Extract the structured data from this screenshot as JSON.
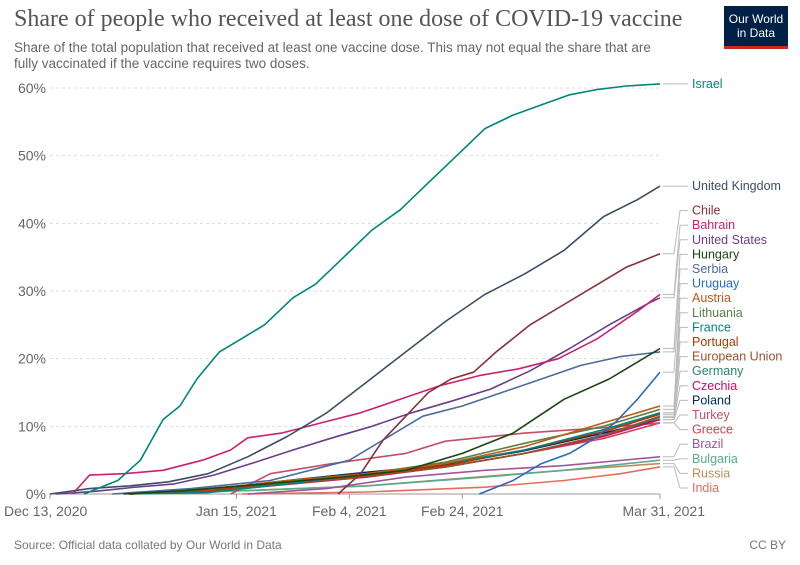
{
  "header": {
    "title": "Share of people who received at least one dose of COVID-19 vaccine",
    "subtitle": "Share of the total population that received at least one vaccine dose. This may not equal the share that are fully vaccinated if the vaccine requires two doses.",
    "logo_line1": "Our World",
    "logo_line2": "in Data"
  },
  "footer": {
    "source": "Source: Official data collated by Our World in Data",
    "license": "CC BY"
  },
  "chart_data": {
    "type": "line",
    "x_axis": {
      "type": "date",
      "range": [
        "2020-12-13",
        "2021-03-31"
      ],
      "ticks": [
        {
          "date": "2020-12-13",
          "label": "Dec 13, 2020"
        },
        {
          "date": "2021-01-15",
          "label": "Jan 15, 2021"
        },
        {
          "date": "2021-02-04",
          "label": "Feb 4, 2021"
        },
        {
          "date": "2021-02-24",
          "label": "Feb 24, 2021"
        },
        {
          "date": "2021-03-31",
          "label": "Mar 31, 2021"
        }
      ]
    },
    "y_axis": {
      "range": [
        0,
        60
      ],
      "ticks": [
        0,
        10,
        20,
        30,
        40,
        50,
        60
      ],
      "tick_labels": [
        "0%",
        "10%",
        "20%",
        "30%",
        "40%",
        "50%",
        "60%"
      ]
    },
    "grid": "horizontal-dashed",
    "legend": "right, labels at line ends",
    "series": [
      {
        "name": "Israel",
        "color": "#00847e",
        "points": [
          [
            "2020-12-19",
            0
          ],
          [
            "2020-12-25",
            2
          ],
          [
            "2020-12-29",
            5
          ],
          [
            "2021-01-02",
            11
          ],
          [
            "2021-01-05",
            13
          ],
          [
            "2021-01-08",
            17
          ],
          [
            "2021-01-12",
            21
          ],
          [
            "2021-01-16",
            23
          ],
          [
            "2021-01-20",
            25
          ],
          [
            "2021-01-25",
            29
          ],
          [
            "2021-01-29",
            31
          ],
          [
            "2021-02-03",
            35
          ],
          [
            "2021-02-08",
            39
          ],
          [
            "2021-02-13",
            42
          ],
          [
            "2021-02-18",
            46
          ],
          [
            "2021-02-23",
            50
          ],
          [
            "2021-02-28",
            54
          ],
          [
            "2021-03-05",
            56
          ],
          [
            "2021-03-10",
            57.5
          ],
          [
            "2021-03-15",
            59
          ],
          [
            "2021-03-20",
            59.8
          ],
          [
            "2021-03-25",
            60.3
          ],
          [
            "2021-03-31",
            60.6
          ]
        ]
      },
      {
        "name": "United Kingdom",
        "color": "#3c4e66",
        "points": [
          [
            "2020-12-13",
            0
          ],
          [
            "2020-12-20",
            0.8
          ],
          [
            "2020-12-27",
            1.2
          ],
          [
            "2021-01-03",
            1.8
          ],
          [
            "2021-01-10",
            3
          ],
          [
            "2021-01-17",
            5.5
          ],
          [
            "2021-01-24",
            8.5
          ],
          [
            "2021-01-31",
            12
          ],
          [
            "2021-02-07",
            16.5
          ],
          [
            "2021-02-14",
            21
          ],
          [
            "2021-02-21",
            25.5
          ],
          [
            "2021-02-28",
            29.5
          ],
          [
            "2021-03-07",
            32.5
          ],
          [
            "2021-03-14",
            36
          ],
          [
            "2021-03-21",
            41
          ],
          [
            "2021-03-27",
            43.5
          ],
          [
            "2021-03-31",
            45.5
          ]
        ]
      },
      {
        "name": "Chile",
        "color": "#883039",
        "points": [
          [
            "2021-02-02",
            0
          ],
          [
            "2021-02-06",
            3
          ],
          [
            "2021-02-10",
            8
          ],
          [
            "2021-02-14",
            11.5
          ],
          [
            "2021-02-18",
            15
          ],
          [
            "2021-02-22",
            17
          ],
          [
            "2021-02-26",
            18
          ],
          [
            "2021-03-02",
            21
          ],
          [
            "2021-03-08",
            25
          ],
          [
            "2021-03-14",
            28
          ],
          [
            "2021-03-20",
            31
          ],
          [
            "2021-03-25",
            33.5
          ],
          [
            "2021-03-31",
            35.5
          ]
        ]
      },
      {
        "name": "Bahrain",
        "color": "#c7226f",
        "points": [
          [
            "2020-12-17",
            0
          ],
          [
            "2020-12-20",
            2.8
          ],
          [
            "2020-12-26",
            3
          ],
          [
            "2021-01-02",
            3.5
          ],
          [
            "2021-01-09",
            5
          ],
          [
            "2021-01-14",
            6.5
          ],
          [
            "2021-01-17",
            8.3
          ],
          [
            "2021-01-23",
            9
          ],
          [
            "2021-01-30",
            10.5
          ],
          [
            "2021-02-06",
            12
          ],
          [
            "2021-02-13",
            14
          ],
          [
            "2021-02-20",
            16
          ],
          [
            "2021-02-27",
            17.5
          ],
          [
            "2021-03-06",
            18.5
          ],
          [
            "2021-03-13",
            20
          ],
          [
            "2021-03-20",
            23
          ],
          [
            "2021-03-27",
            27
          ],
          [
            "2021-03-31",
            29.5
          ]
        ]
      },
      {
        "name": "United States",
        "color": "#6b3d8d",
        "points": [
          [
            "2020-12-14",
            0
          ],
          [
            "2020-12-21",
            0.4
          ],
          [
            "2020-12-28",
            1
          ],
          [
            "2021-01-04",
            1.5
          ],
          [
            "2021-01-11",
            2.8
          ],
          [
            "2021-01-18",
            4.6
          ],
          [
            "2021-01-25",
            6.5
          ],
          [
            "2021-02-01",
            8.3
          ],
          [
            "2021-02-08",
            10
          ],
          [
            "2021-02-15",
            12
          ],
          [
            "2021-02-22",
            13.7
          ],
          [
            "2021-03-01",
            15.5
          ],
          [
            "2021-03-08",
            18.2
          ],
          [
            "2021-03-15",
            21.5
          ],
          [
            "2021-03-22",
            25
          ],
          [
            "2021-03-29",
            28.2
          ],
          [
            "2021-03-31",
            29
          ]
        ]
      },
      {
        "name": "Hungary",
        "color": "#18470f",
        "points": [
          [
            "2020-12-26",
            0
          ],
          [
            "2021-01-06",
            0.5
          ],
          [
            "2021-01-20",
            1.5
          ],
          [
            "2021-02-03",
            2.5
          ],
          [
            "2021-02-14",
            3.5
          ],
          [
            "2021-02-24",
            6
          ],
          [
            "2021-03-05",
            9
          ],
          [
            "2021-03-14",
            14
          ],
          [
            "2021-03-22",
            17
          ],
          [
            "2021-03-31",
            21.5
          ]
        ]
      },
      {
        "name": "Serbia",
        "color": "#4c6a9c",
        "points": [
          [
            "2020-12-24",
            0
          ],
          [
            "2021-01-07",
            0.8
          ],
          [
            "2021-01-21",
            2
          ],
          [
            "2021-02-04",
            5
          ],
          [
            "2021-02-10",
            8
          ],
          [
            "2021-02-17",
            11.5
          ],
          [
            "2021-02-24",
            13
          ],
          [
            "2021-03-03",
            15
          ],
          [
            "2021-03-10",
            17
          ],
          [
            "2021-03-17",
            19
          ],
          [
            "2021-03-24",
            20.3
          ],
          [
            "2021-03-31",
            21
          ]
        ]
      },
      {
        "name": "Uruguay",
        "color": "#286bbb",
        "points": [
          [
            "2021-02-27",
            0
          ],
          [
            "2021-03-05",
            2
          ],
          [
            "2021-03-10",
            4.5
          ],
          [
            "2021-03-15",
            6
          ],
          [
            "2021-03-19",
            8
          ],
          [
            "2021-03-23",
            10.5
          ],
          [
            "2021-03-27",
            14
          ],
          [
            "2021-03-31",
            18
          ]
        ]
      },
      {
        "name": "Austria",
        "color": "#be5915",
        "points": [
          [
            "2020-12-27",
            0
          ],
          [
            "2021-01-10",
            0.7
          ],
          [
            "2021-01-24",
            2
          ],
          [
            "2021-02-07",
            3
          ],
          [
            "2021-02-21",
            4.5
          ],
          [
            "2021-03-07",
            7
          ],
          [
            "2021-03-21",
            10.5
          ],
          [
            "2021-03-31",
            13
          ]
        ]
      },
      {
        "name": "Lithuania",
        "color": "#578145",
        "points": [
          [
            "2020-12-27",
            0
          ],
          [
            "2021-01-10",
            0.8
          ],
          [
            "2021-01-24",
            1.8
          ],
          [
            "2021-02-07",
            3
          ],
          [
            "2021-02-21",
            4.7
          ],
          [
            "2021-03-07",
            7.5
          ],
          [
            "2021-03-21",
            10
          ],
          [
            "2021-03-31",
            12.5
          ]
        ]
      },
      {
        "name": "France",
        "color": "#00847e",
        "points": [
          [
            "2020-12-27",
            0
          ],
          [
            "2021-01-10",
            0.2
          ],
          [
            "2021-01-24",
            1.5
          ],
          [
            "2021-02-07",
            3
          ],
          [
            "2021-02-21",
            4.5
          ],
          [
            "2021-03-07",
            6.5
          ],
          [
            "2021-03-21",
            9.5
          ],
          [
            "2021-03-31",
            12
          ]
        ]
      },
      {
        "name": "Portugal",
        "color": "#b13507",
        "points": [
          [
            "2020-12-27",
            0
          ],
          [
            "2021-01-10",
            0.5
          ],
          [
            "2021-01-24",
            1.8
          ],
          [
            "2021-02-07",
            2.8
          ],
          [
            "2021-02-21",
            4.2
          ],
          [
            "2021-03-07",
            6.5
          ],
          [
            "2021-03-21",
            9.2
          ],
          [
            "2021-03-31",
            11.8
          ]
        ]
      },
      {
        "name": "European Union",
        "color": "#9a5129",
        "points": [
          [
            "2020-12-27",
            0
          ],
          [
            "2021-01-10",
            0.4
          ],
          [
            "2021-01-24",
            1.5
          ],
          [
            "2021-02-07",
            2.6
          ],
          [
            "2021-02-21",
            4
          ],
          [
            "2021-03-07",
            6
          ],
          [
            "2021-03-21",
            8.7
          ],
          [
            "2021-03-31",
            11.5
          ]
        ]
      },
      {
        "name": "Germany",
        "color": "#2c8465",
        "points": [
          [
            "2020-12-27",
            0
          ],
          [
            "2021-01-10",
            0.6
          ],
          [
            "2021-01-24",
            1.7
          ],
          [
            "2021-02-07",
            2.8
          ],
          [
            "2021-02-21",
            4
          ],
          [
            "2021-03-07",
            6
          ],
          [
            "2021-03-21",
            8.7
          ],
          [
            "2021-03-31",
            11.3
          ]
        ]
      },
      {
        "name": "Czechia",
        "color": "#cf0a66",
        "points": [
          [
            "2020-12-27",
            0
          ],
          [
            "2021-01-10",
            0.5
          ],
          [
            "2021-01-24",
            1.5
          ],
          [
            "2021-02-07",
            2.5
          ],
          [
            "2021-02-21",
            4
          ],
          [
            "2021-03-07",
            6
          ],
          [
            "2021-03-21",
            8.5
          ],
          [
            "2021-03-31",
            11
          ]
        ]
      },
      {
        "name": "Poland",
        "color": "#00295b",
        "points": [
          [
            "2020-12-27",
            0
          ],
          [
            "2021-01-10",
            0.6
          ],
          [
            "2021-01-24",
            2
          ],
          [
            "2021-02-07",
            3.2
          ],
          [
            "2021-02-21",
            4.3
          ],
          [
            "2021-03-07",
            6.4
          ],
          [
            "2021-03-21",
            9
          ],
          [
            "2021-03-31",
            11
          ]
        ]
      },
      {
        "name": "Turkey",
        "color": "#c15065",
        "points": [
          [
            "2021-01-14",
            0
          ],
          [
            "2021-01-21",
            3
          ],
          [
            "2021-02-01",
            4.5
          ],
          [
            "2021-02-14",
            6
          ],
          [
            "2021-02-21",
            7.8
          ],
          [
            "2021-03-07",
            9
          ],
          [
            "2021-03-21",
            9.8
          ],
          [
            "2021-03-31",
            10.5
          ]
        ]
      },
      {
        "name": "Greece",
        "color": "#d73c50",
        "points": [
          [
            "2020-12-27",
            0
          ],
          [
            "2021-01-10",
            0.4
          ],
          [
            "2021-01-24",
            1.4
          ],
          [
            "2021-02-07",
            2.5
          ],
          [
            "2021-02-21",
            4
          ],
          [
            "2021-03-07",
            6
          ],
          [
            "2021-03-21",
            8.2
          ],
          [
            "2021-03-31",
            10.5
          ]
        ]
      },
      {
        "name": "Brazil",
        "color": "#a2559c",
        "points": [
          [
            "2021-01-17",
            0
          ],
          [
            "2021-01-31",
            0.8
          ],
          [
            "2021-02-14",
            2.5
          ],
          [
            "2021-02-28",
            3.5
          ],
          [
            "2021-03-14",
            4.2
          ],
          [
            "2021-03-31",
            5.5
          ]
        ]
      },
      {
        "name": "Bulgaria",
        "color": "#58ac8c",
        "points": [
          [
            "2020-12-27",
            0
          ],
          [
            "2021-01-17",
            0.5
          ],
          [
            "2021-02-07",
            1.2
          ],
          [
            "2021-02-28",
            2.5
          ],
          [
            "2021-03-14",
            3.5
          ],
          [
            "2021-03-31",
            5
          ]
        ]
      },
      {
        "name": "Russia",
        "color": "#bc8e5a",
        "points": [
          [
            "2020-12-27",
            0
          ],
          [
            "2021-01-17",
            0.5
          ],
          [
            "2021-02-07",
            1.2
          ],
          [
            "2021-02-28",
            2.6
          ],
          [
            "2021-03-14",
            3.5
          ],
          [
            "2021-03-31",
            4.5
          ]
        ]
      },
      {
        "name": "India",
        "color": "#e56e5a",
        "points": [
          [
            "2021-01-16",
            0
          ],
          [
            "2021-02-07",
            0.3
          ],
          [
            "2021-02-28",
            1
          ],
          [
            "2021-03-14",
            2
          ],
          [
            "2021-03-24",
            3
          ],
          [
            "2021-03-31",
            4
          ]
        ]
      }
    ],
    "label_order": [
      "Israel",
      "United Kingdom",
      "Chile",
      "Bahrain",
      "United States",
      "Hungary",
      "Serbia",
      "Uruguay",
      "Austria",
      "Lithuania",
      "France",
      "Portugal",
      "European Union",
      "Germany",
      "Czechia",
      "Poland",
      "Turkey",
      "Greece",
      "Brazil",
      "Bulgaria",
      "Russia",
      "India"
    ]
  }
}
